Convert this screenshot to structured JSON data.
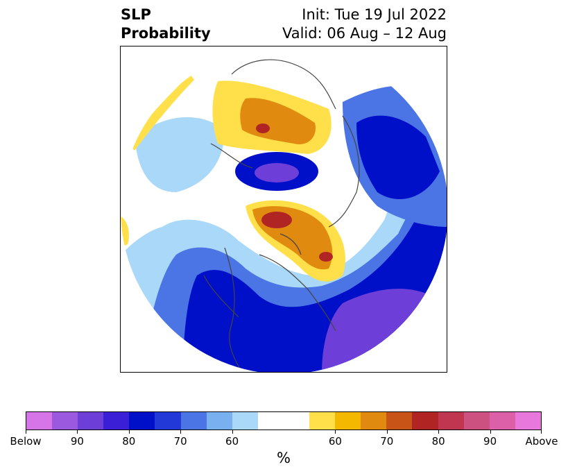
{
  "title": {
    "line1": "SLP",
    "line2": "Probability",
    "init": "Init: Tue 19 Jul 2022",
    "valid": "Valid: 06 Aug – 12 Aug"
  },
  "colorbar": {
    "unit": "%",
    "colors": [
      "#d575e8",
      "#9b59e0",
      "#6d3fd8",
      "#3b1fd6",
      "#0010c8",
      "#2239d8",
      "#4b74e4",
      "#78b0f0",
      "#aad8f8",
      "#ffffff",
      "#ffe04a",
      "#f5b800",
      "#e08a10",
      "#c85418",
      "#b02424",
      "#c03650",
      "#cc5080",
      "#dc60a8",
      "#e878dc"
    ],
    "ticks": [
      "Below",
      "90",
      "80",
      "70",
      "60",
      "60",
      "70",
      "80",
      "90",
      "Above"
    ]
  },
  "map": {
    "anomaly_colors": {
      "below_60": "#aad8f8",
      "below_70": "#4b74e4",
      "below_80": "#0010c8",
      "below_90": "#6d3fd8",
      "above_60": "#ffe04a",
      "above_70": "#e08a10",
      "above_80": "#b02424"
    }
  }
}
